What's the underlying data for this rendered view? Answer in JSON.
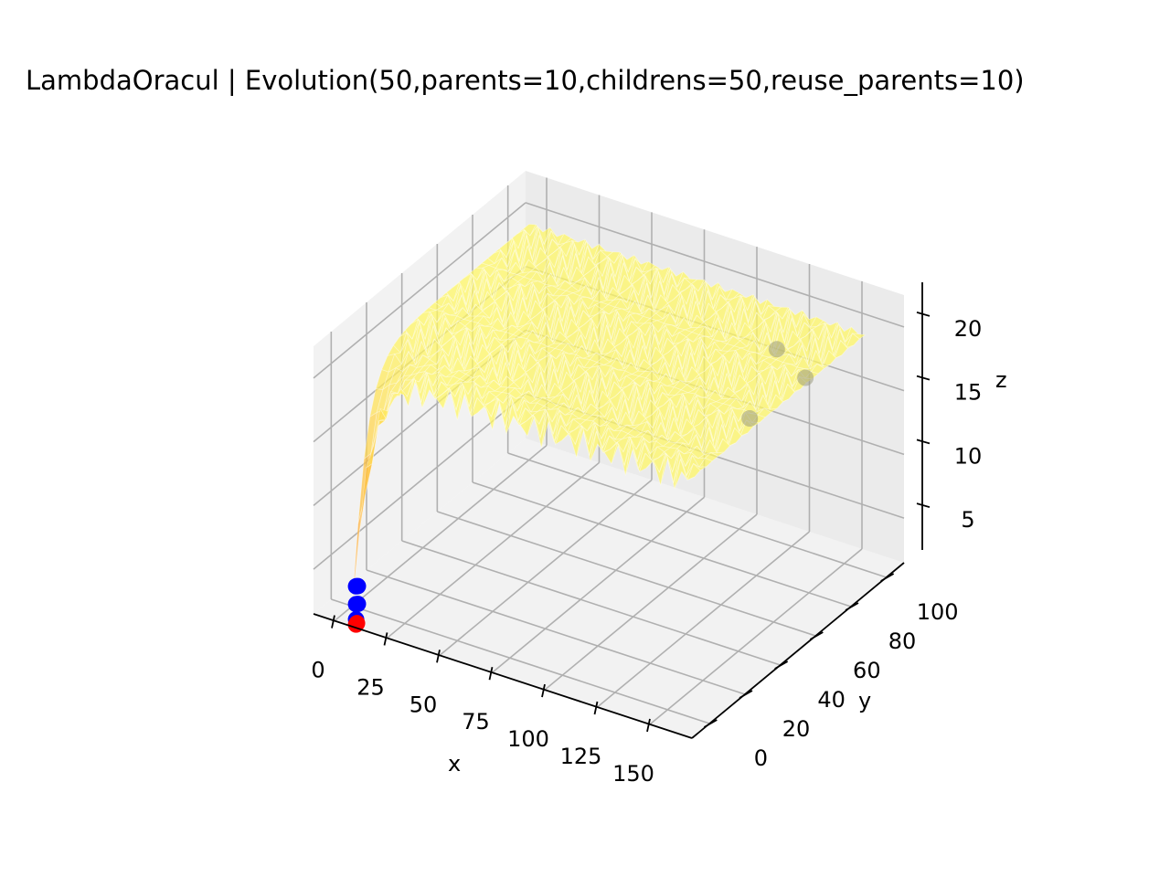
{
  "chart_data": {
    "type": "surface3d",
    "title": "LambdaOracul | Evolution(50,parents=10,childrens=50,reuse_parents=10)",
    "xlabel": "x",
    "ylabel": "y",
    "zlabel": "z",
    "xlim": [
      -10,
      170
    ],
    "ylim": [
      -10,
      110
    ],
    "zlim": [
      1.5,
      22.5
    ],
    "x_ticks": [
      0,
      25,
      50,
      75,
      100,
      125,
      150
    ],
    "y_ticks": [
      0,
      20,
      40,
      60,
      80,
      100
    ],
    "z_ticks": [
      5,
      10,
      15,
      20
    ],
    "grid": true,
    "surface": {
      "x_range": [
        0,
        160
      ],
      "y_range": [
        0,
        100
      ],
      "plateau_z": 20,
      "colormap": [
        "#ff8c1a",
        "#ffc640",
        "#ffff66"
      ]
    },
    "population_points": {
      "color": "#0000ff",
      "points": [
        {
          "x": 1,
          "y": 1,
          "z": 3
        },
        {
          "x": 1,
          "y": 2,
          "z": 2.9
        },
        {
          "x": 1,
          "y": 1,
          "z": 1.6
        },
        {
          "x": 1,
          "y": 2,
          "z": 1.5
        },
        {
          "x": 1,
          "y": 1,
          "z": 0.4
        }
      ]
    },
    "best_points": {
      "color": "#ff0000",
      "points": [
        {
          "x": 1,
          "y": 1,
          "z": 0
        },
        {
          "x": 1,
          "y": 1.5,
          "z": 0.05
        }
      ]
    },
    "far_points": {
      "color": "#9a9a80",
      "points": [
        {
          "x": 128,
          "y": 88,
          "z": 18.5
        },
        {
          "x": 150,
          "y": 78,
          "z": 18.6
        },
        {
          "x": 142,
          "y": 56,
          "z": 17.5
        }
      ]
    }
  }
}
